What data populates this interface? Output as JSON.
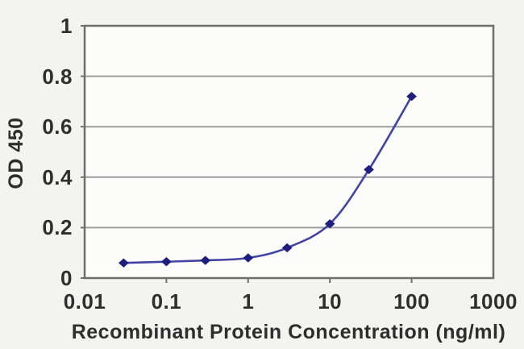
{
  "chart_data": {
    "type": "line",
    "title": "",
    "xlabel": "Recombinant Protein Concentration (ng/ml)",
    "ylabel": "OD 450",
    "x_scale": "log",
    "xlim": [
      0.01,
      1000
    ],
    "ylim": [
      0,
      1
    ],
    "x_ticks": [
      0.01,
      0.1,
      1,
      10,
      100,
      1000
    ],
    "x_tick_labels": [
      "0.01",
      "0.1",
      "1",
      "10",
      "100",
      "1000"
    ],
    "y_ticks": [
      0,
      0.2,
      0.4,
      0.6,
      0.8,
      1
    ],
    "y_tick_labels": [
      "0",
      "0.2",
      "0.4",
      "0.6",
      "0.8",
      "1"
    ],
    "grid": "horizontal",
    "legend": "none",
    "series": [
      {
        "name": "OD 450",
        "marker": "diamond",
        "smooth": true,
        "x": [
          0.03,
          0.1,
          0.3,
          1,
          3,
          10,
          30,
          100
        ],
        "y": [
          0.06,
          0.065,
          0.07,
          0.08,
          0.12,
          0.215,
          0.43,
          0.72
        ]
      }
    ],
    "colors": {
      "line": "#4444a4",
      "marker": "#1e1e7e",
      "gridline": "#9f9f9f",
      "plot_border": "#6e6e6e",
      "plot_background": "#fcfcfa",
      "page_background": "#f3f3ef",
      "text": "#2e2e2e"
    }
  }
}
